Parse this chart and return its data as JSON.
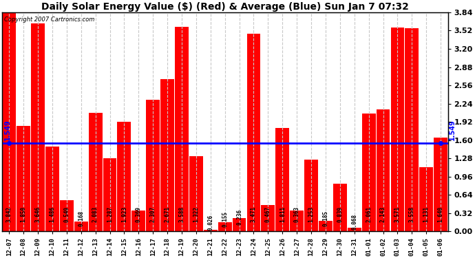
{
  "title": "Daily Solar Energy Value ($) (Red) & Average (Blue) Sun Jan 7 07:32",
  "copyright": "Copyright 2007 Cartronics.com",
  "categories": [
    "12-07",
    "12-08",
    "12-09",
    "12-10",
    "12-11",
    "12-12",
    "12-13",
    "12-14",
    "12-15",
    "12-16",
    "12-17",
    "12-18",
    "12-19",
    "12-20",
    "12-21",
    "12-22",
    "12-23",
    "12-24",
    "12-25",
    "12-26",
    "12-27",
    "12-28",
    "12-29",
    "12-30",
    "12-31",
    "01-01",
    "01-02",
    "01-03",
    "01-04",
    "01-05",
    "01-06"
  ],
  "values": [
    3.842,
    1.85,
    3.646,
    1.486,
    0.549,
    0.168,
    2.083,
    1.287,
    1.923,
    0.369,
    2.307,
    2.671,
    3.588,
    1.322,
    0.026,
    0.155,
    0.236,
    3.471,
    0.467,
    1.811,
    0.363,
    1.253,
    0.185,
    0.839,
    0.068,
    2.061,
    2.143,
    3.571,
    3.558,
    1.131,
    1.64
  ],
  "average": 1.549,
  "bar_color": "#ff0000",
  "avg_line_color": "#0000ff",
  "background_color": "#ffffff",
  "grid_color": "#c8c8c8",
  "ylim": [
    0,
    3.84
  ],
  "yticks": [
    0.0,
    0.32,
    0.64,
    0.96,
    1.28,
    1.6,
    1.92,
    2.24,
    2.56,
    2.88,
    3.2,
    3.52,
    3.84
  ]
}
